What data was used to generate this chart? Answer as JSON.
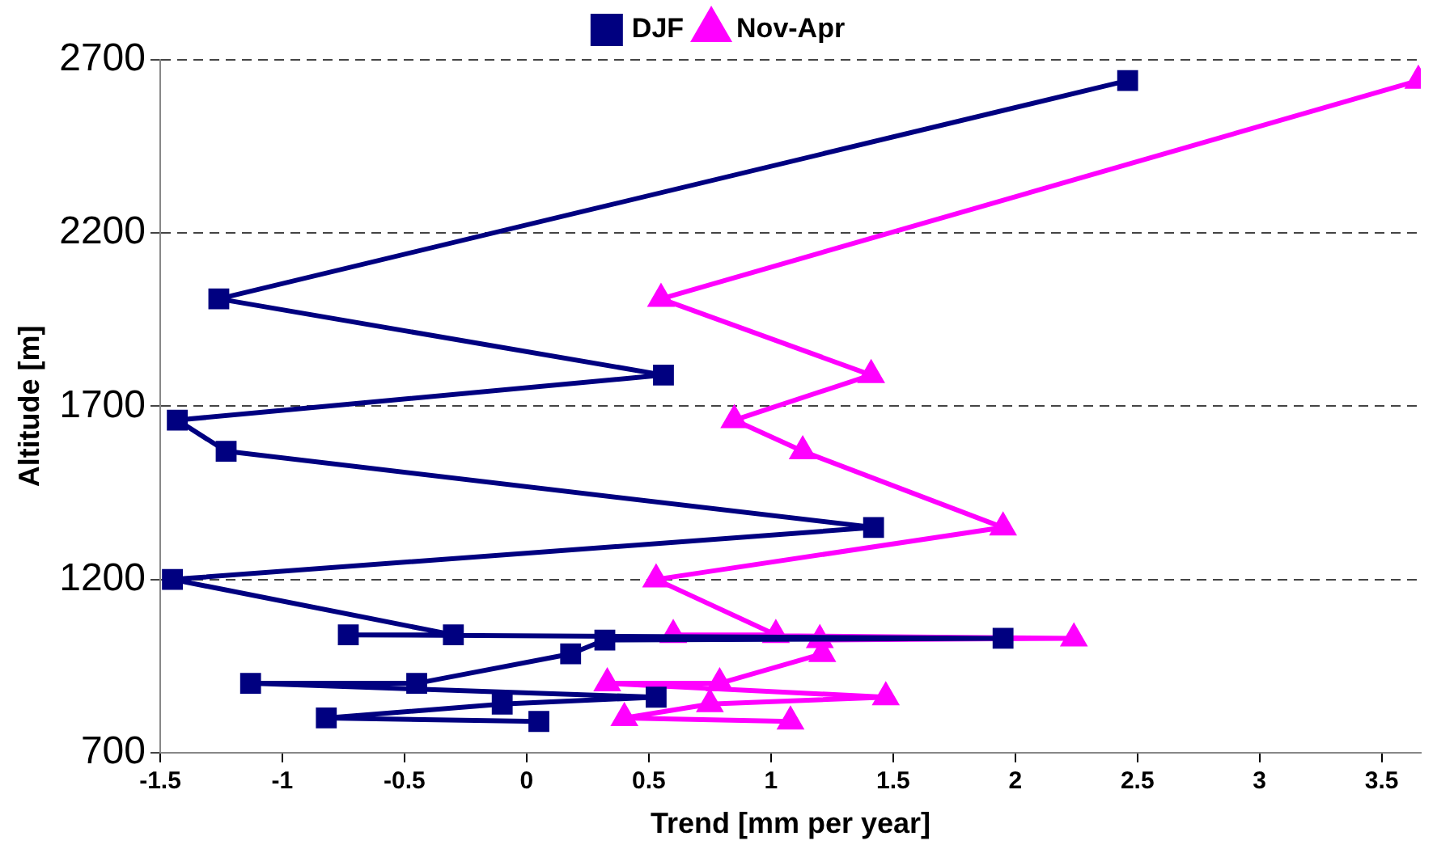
{
  "chart_data": {
    "type": "line",
    "xlabel": "Trend [mm per year]",
    "ylabel": "Altitude [m]",
    "xlim": [
      -1.5,
      3.66
    ],
    "xticks": [
      -1.5,
      -1,
      -0.5,
      0,
      0.5,
      1,
      1.5,
      2,
      2.5,
      3,
      3.5
    ],
    "ylim": [
      700,
      2700
    ],
    "yticks": [
      700,
      1200,
      1700,
      2200,
      2700
    ],
    "grid": "y",
    "legend": "top",
    "line_style": "solid",
    "series": [
      {
        "name": "DJF",
        "color": "#000080",
        "marker": "square",
        "x": [
          2.46,
          -1.26,
          0.56,
          -1.43,
          -1.23,
          1.42,
          -1.45,
          -0.3,
          -0.73,
          1.95,
          0.32,
          0.18,
          -0.45,
          -1.13,
          0.53,
          -0.1,
          -0.82,
          0.05
        ],
        "values": [
          2640,
          2010,
          1790,
          1660,
          1570,
          1350,
          1200,
          1040,
          1040,
          1030,
          1025,
          985,
          900,
          900,
          860,
          840,
          800,
          790
        ]
      },
      {
        "name": "Nov-Apr",
        "color": "#ff00ff",
        "marker": "triangle",
        "x": [
          3.65,
          0.55,
          1.41,
          0.85,
          1.13,
          1.95,
          0.53,
          1.02,
          0.6,
          2.24,
          1.2,
          1.21,
          0.79,
          0.33,
          1.47,
          0.75,
          0.4,
          1.08
        ],
        "values": [
          2640,
          2010,
          1790,
          1660,
          1570,
          1350,
          1200,
          1040,
          1040,
          1030,
          1025,
          985,
          900,
          900,
          860,
          840,
          800,
          790
        ]
      }
    ]
  }
}
